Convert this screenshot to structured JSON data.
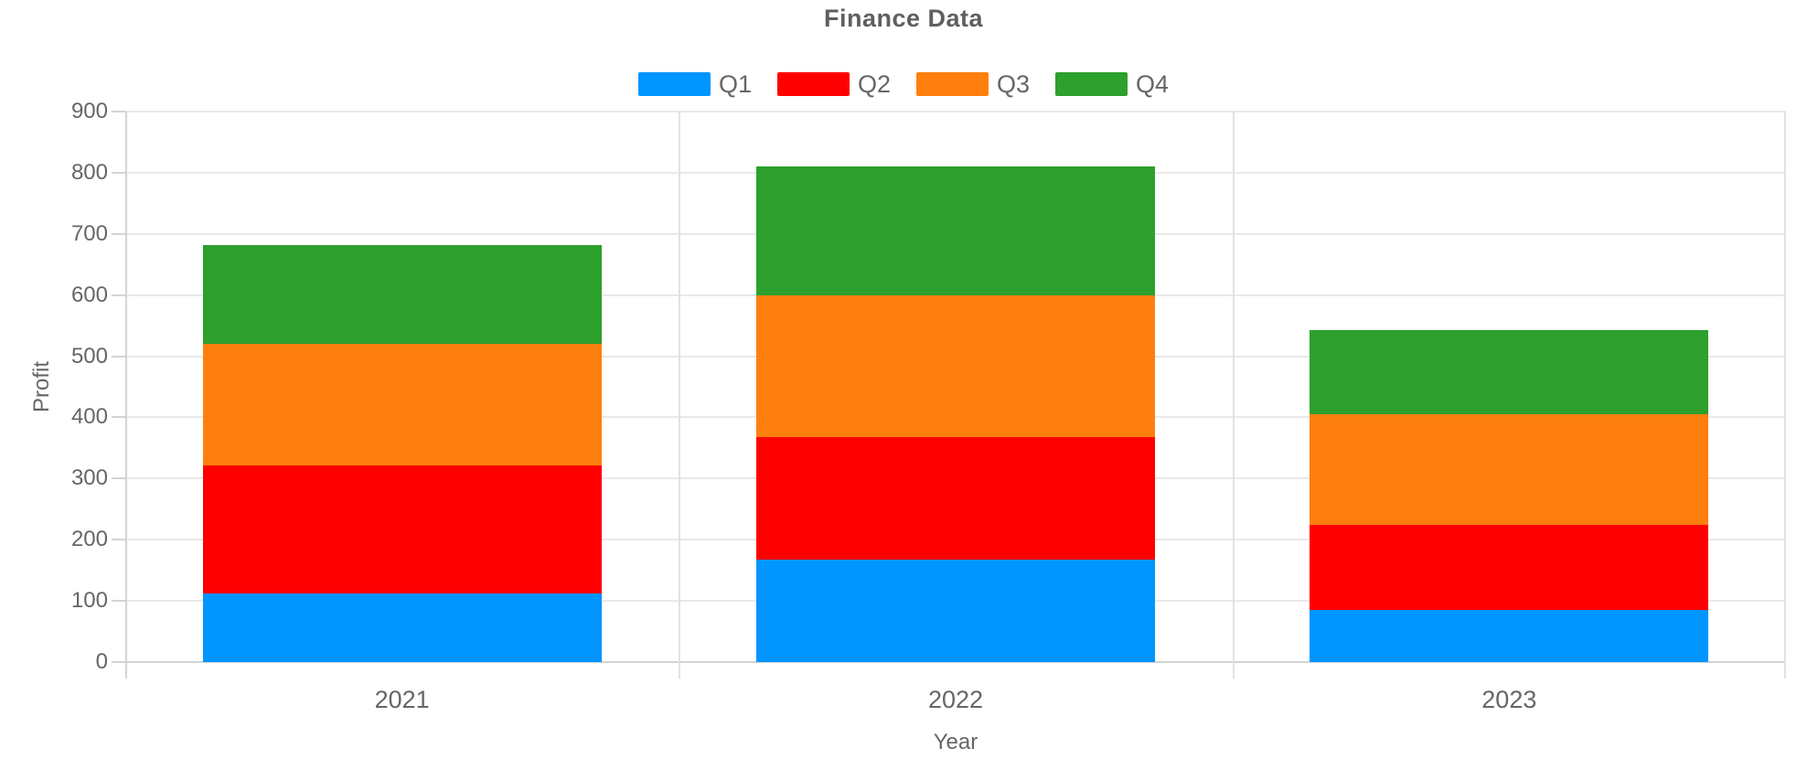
{
  "page": {
    "background": "#ffffff"
  },
  "chart_data": {
    "type": "bar",
    "stacked": true,
    "title": "Finance Data",
    "xlabel": "Year",
    "ylabel": "Profit",
    "categories": [
      "2021",
      "2022",
      "2023"
    ],
    "series": [
      {
        "name": "Q1",
        "color": "#0095ff",
        "values": [
          112,
          168,
          85
        ]
      },
      {
        "name": "Q2",
        "color": "#fe0000",
        "values": [
          209,
          200,
          139
        ]
      },
      {
        "name": "Q3",
        "color": "#ff7f0e",
        "values": [
          199,
          232,
          181
        ]
      },
      {
        "name": "Q4",
        "color": "#2da02d",
        "values": [
          162,
          210,
          138
        ]
      }
    ],
    "stack_totals": [
      682,
      810,
      543
    ],
    "ylim": [
      0,
      900
    ],
    "ytick_step": 100,
    "yticks": [
      0,
      100,
      200,
      300,
      400,
      500,
      600,
      700,
      800,
      900
    ],
    "grid": true,
    "legend_position": "top",
    "styles": {
      "text_color": "#666666",
      "title_color": "#5f5f5f",
      "grid_color": "#e9e9e9",
      "separator_color": "#e2e2e2",
      "axis_color": "#d4d4d4"
    }
  }
}
